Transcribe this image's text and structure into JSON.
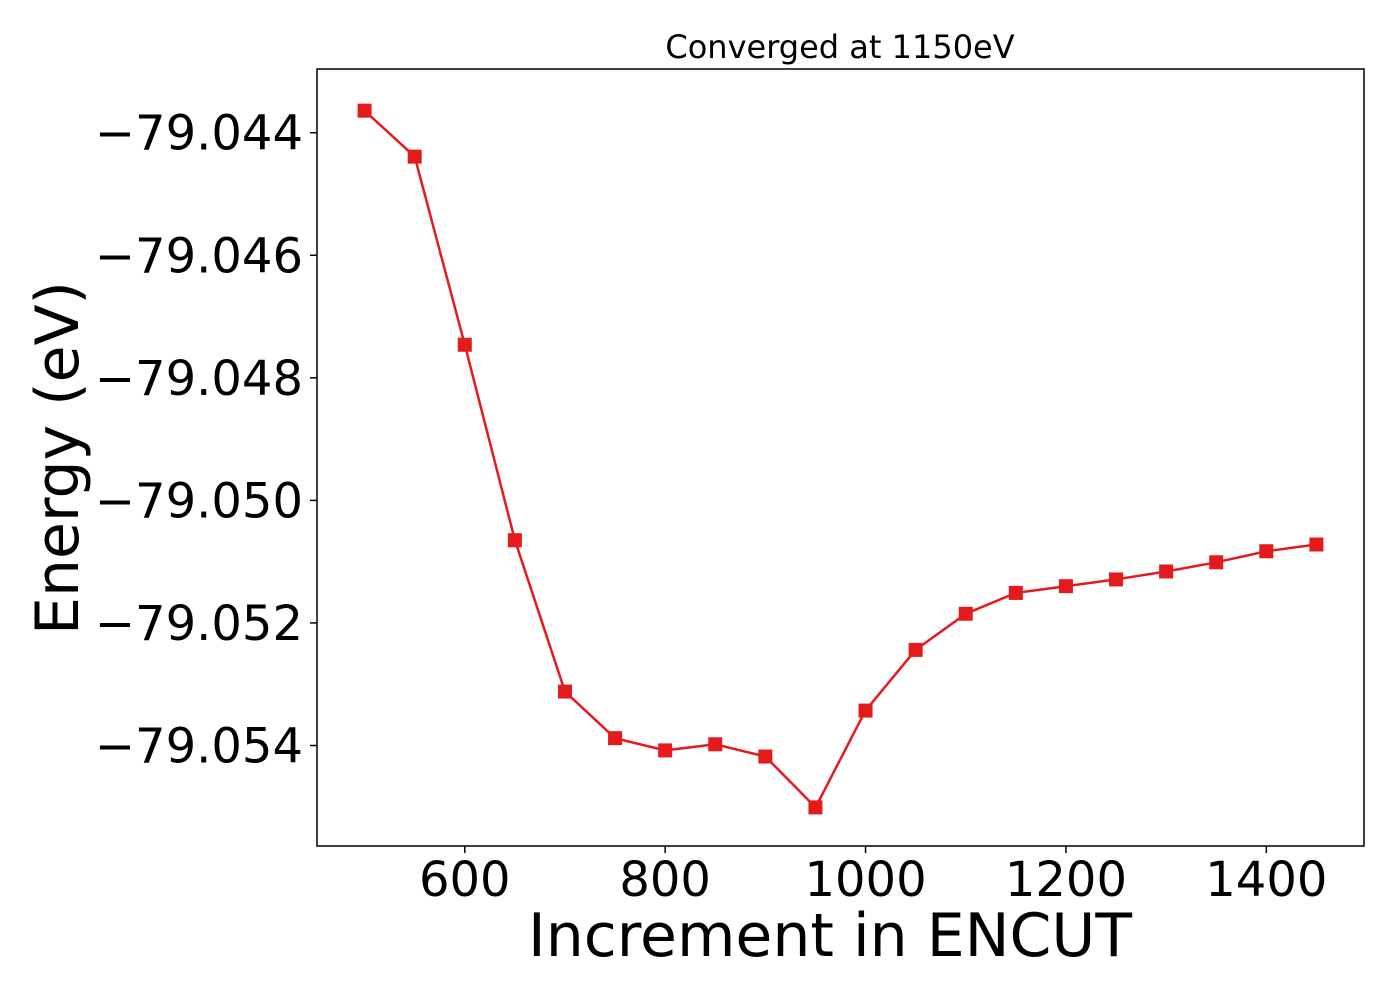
{
  "chart_data": {
    "type": "line",
    "title": "Converged at 1150eV",
    "xlabel": "Increment in ENCUT",
    "ylabel": "Energy (eV)",
    "xlim": [
      452.5,
      1497.5
    ],
    "ylim": [
      -79.05564,
      -79.04296
    ],
    "x_ticks": [
      600,
      800,
      1000,
      1200,
      1400
    ],
    "x_tick_labels": [
      "600",
      "800",
      "1000",
      "1200",
      "1400"
    ],
    "y_ticks": [
      -79.044,
      -79.046,
      -79.048,
      -79.05,
      -79.052,
      -79.054
    ],
    "y_tick_labels": [
      "−79.044",
      "−79.046",
      "−79.048",
      "−79.050",
      "−79.052",
      "−79.054"
    ],
    "grid": false,
    "series": [
      {
        "color": "#e41a1c",
        "marker": "square",
        "x": [
          500,
          550,
          600,
          650,
          700,
          750,
          800,
          850,
          900,
          950,
          1000,
          1050,
          1100,
          1150,
          1200,
          1250,
          1300,
          1350,
          1400,
          1450
        ],
        "y": [
          -79.04364,
          -79.04439,
          -79.04746,
          -79.05065,
          -79.05312,
          -79.05388,
          -79.05408,
          -79.05398,
          -79.05418,
          -79.05501,
          -79.05343,
          -79.05244,
          -79.05185,
          -79.05151,
          -79.0514,
          -79.05129,
          -79.05116,
          -79.05101,
          -79.05083,
          -79.05072
        ]
      }
    ]
  }
}
